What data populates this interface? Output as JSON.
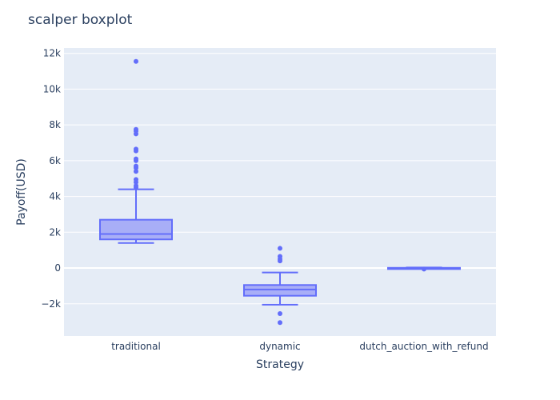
{
  "chart_data": {
    "type": "box",
    "title": "scalper boxplot",
    "xlabel": "Strategy",
    "ylabel": "Payoff(USD)",
    "ylim": [
      -3800,
      12300
    ],
    "yticks": [
      12000,
      10000,
      8000,
      6000,
      4000,
      2000,
      0,
      -2000
    ],
    "ytick_labels": [
      "12k",
      "10k",
      "8k",
      "6k",
      "4k",
      "2k",
      "0",
      "−2k"
    ],
    "grid": true,
    "categories": [
      "traditional",
      "dynamic",
      "dutch_auction_with_refund"
    ],
    "boxes": [
      {
        "category": "traditional",
        "min": 1400,
        "q1": 1600,
        "median": 1900,
        "q3": 2700,
        "max": 4400,
        "outliers": [
          11550,
          7750,
          7650,
          7500,
          6650,
          6550,
          6100,
          6000,
          5700,
          5600,
          5400,
          4950,
          4800,
          4600,
          4500
        ]
      },
      {
        "category": "dynamic",
        "min": -2050,
        "q1": -1550,
        "median": -1200,
        "q3": -950,
        "max": -250,
        "outliers": [
          1100,
          650,
          500,
          400,
          -2550,
          -3050
        ]
      },
      {
        "category": "dutch_auction_with_refund",
        "min": -30,
        "q1": -20,
        "median": -10,
        "q3": 10,
        "max": 30,
        "outliers": [
          -60
        ]
      }
    ],
    "colors": {
      "box_line": "#636efa",
      "box_fill": "#a8aef7",
      "plot_bg": "#e5ecf6",
      "grid": "#ffffff",
      "text": "#2a3f5f"
    }
  }
}
